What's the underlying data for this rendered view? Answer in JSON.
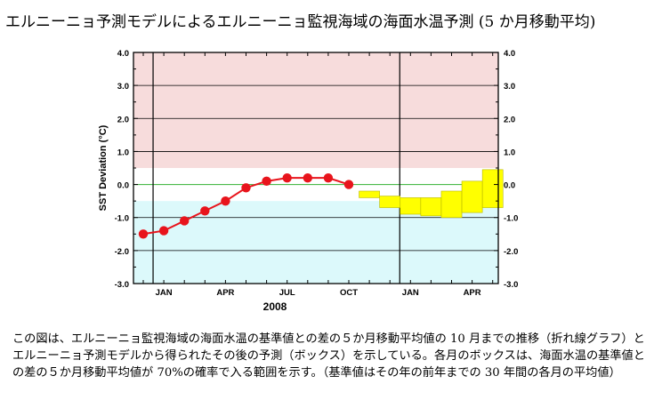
{
  "title": "エルニーニョ予測モデルによるエルニーニョ監視海域の海面水温予測 (5 か月移動平均)",
  "chart_data": {
    "type": "line",
    "title": "エルニーニョ予測モデルによるエルニーニョ監視海域の海面水温予測 (5 か月移動平均)",
    "ylabel": "SST Deviation (°C)",
    "xlabel": "2008",
    "ylim": [
      -3.0,
      4.0
    ],
    "yticks": [
      "4.0",
      "3.0",
      "2.0",
      "1.0",
      "0.0",
      "-1.0",
      "-2.0",
      "-3.0"
    ],
    "xtick_labels": [
      {
        "month": 1,
        "label": "JAN"
      },
      {
        "month": 4,
        "label": "APR"
      },
      {
        "month": 7,
        "label": "JUL"
      },
      {
        "month": 10,
        "label": "OCT"
      },
      {
        "month": 13,
        "label": "JAN"
      },
      {
        "month": 16,
        "label": "APR"
      }
    ],
    "bands": [
      {
        "name": "el-nino-zone",
        "from": 0.5,
        "to": 4.0,
        "color": "#f7dcdc"
      },
      {
        "name": "la-nina-zone",
        "from": -3.0,
        "to": -0.5,
        "color": "#dcf9fb"
      }
    ],
    "series": [
      {
        "name": "observed 5-month running mean",
        "color": "#e8141c",
        "x": [
          0,
          1,
          2,
          3,
          4,
          5,
          6,
          7,
          8,
          9,
          10
        ],
        "values": [
          -1.5,
          -1.4,
          -1.1,
          -0.8,
          -0.5,
          -0.1,
          0.1,
          0.2,
          0.2,
          0.2,
          0.0
        ]
      }
    ],
    "forecast_boxes": {
      "name": "70% probability range",
      "color": "#ffff00",
      "items": [
        {
          "month": 11,
          "low": -0.4,
          "high": -0.2
        },
        {
          "month": 12,
          "low": -0.7,
          "high": -0.35
        },
        {
          "month": 13,
          "low": -0.9,
          "high": -0.4
        },
        {
          "month": 14,
          "low": -0.95,
          "high": -0.4
        },
        {
          "month": 15,
          "low": -1.0,
          "high": -0.2
        },
        {
          "month": 16,
          "low": -0.85,
          "high": 0.1
        },
        {
          "month": 17,
          "low": -0.7,
          "high": 0.45
        }
      ]
    }
  },
  "caption": "この図は、エルニーニョ監視海域の海面水温の基準値との差の５か月移動平均値の 10 月までの推移（折れ線グラフ）とエルニーニョ予測モデルから得られたその後の予測（ボックス）を示している。各月のボックスは、海面水温の基準値との差の５か月移動平均値が 70%の確率で入る範囲を示す。（基準値はその年の前年までの 30 年間の各月の平均値）"
}
